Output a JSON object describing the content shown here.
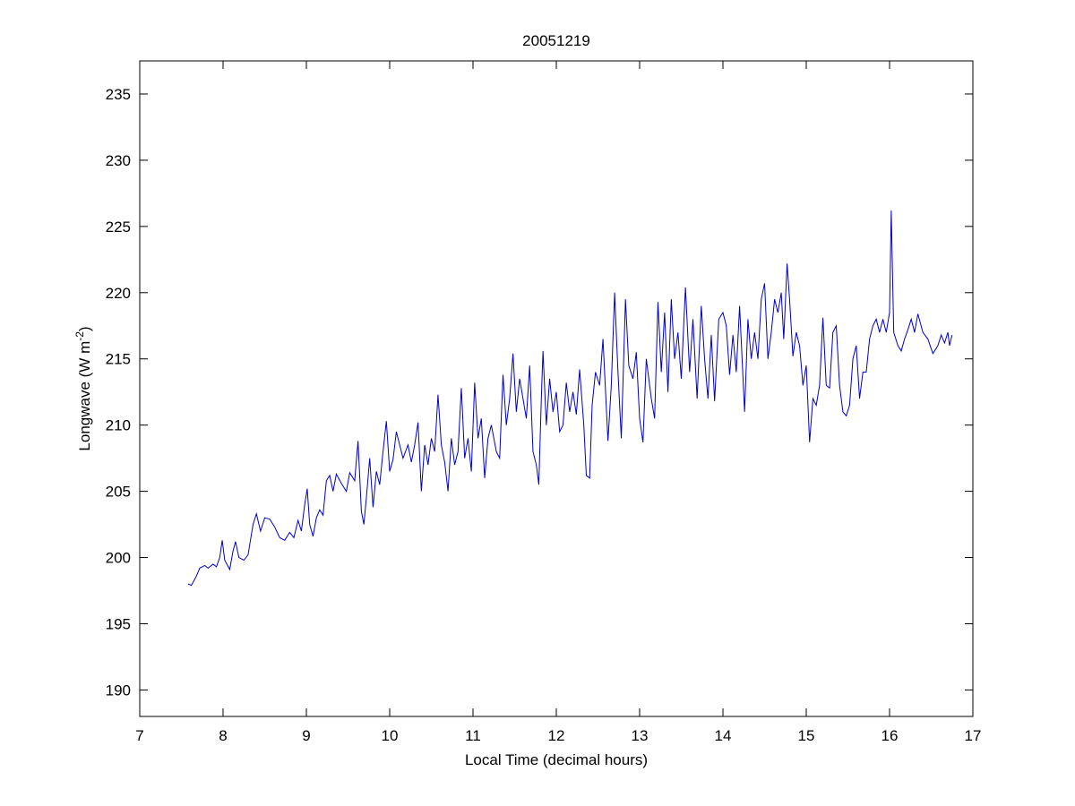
{
  "chart_data": {
    "type": "line",
    "title": "20051219",
    "xlabel": "Local Time (decimal hours)",
    "ylabel": [
      "Longwave (W m",
      "-2",
      ")"
    ],
    "xlim": [
      7,
      17
    ],
    "xticks": [
      7,
      8,
      9,
      10,
      11,
      12,
      13,
      14,
      15,
      16,
      17
    ],
    "ylim": [
      188,
      237.5
    ],
    "yticks": [
      190,
      195,
      200,
      205,
      210,
      215,
      220,
      225,
      230,
      235
    ],
    "grid": false,
    "series": [
      {
        "color": "#0000cc",
        "x": [
          7.58,
          7.62,
          7.68,
          7.72,
          7.78,
          7.82,
          7.88,
          7.92,
          7.96,
          7.99,
          8.02,
          8.08,
          8.12,
          8.15,
          8.19,
          8.25,
          8.3,
          8.36,
          8.4,
          8.45,
          8.5,
          8.56,
          8.62,
          8.68,
          8.74,
          8.8,
          8.85,
          8.9,
          8.94,
          8.98,
          9.01,
          9.04,
          9.08,
          9.12,
          9.16,
          9.2,
          9.24,
          9.28,
          9.32,
          9.36,
          9.42,
          9.48,
          9.52,
          9.58,
          9.62,
          9.66,
          9.69,
          9.72,
          9.76,
          9.8,
          9.84,
          9.88,
          9.92,
          9.96,
          10.0,
          10.04,
          10.08,
          10.12,
          10.16,
          10.22,
          10.26,
          10.3,
          10.34,
          10.38,
          10.42,
          10.46,
          10.5,
          10.54,
          10.58,
          10.62,
          10.66,
          10.7,
          10.74,
          10.78,
          10.82,
          10.86,
          10.9,
          10.94,
          10.98,
          11.02,
          11.06,
          11.1,
          11.14,
          11.18,
          11.22,
          11.28,
          11.32,
          11.36,
          11.4,
          11.44,
          11.48,
          11.52,
          11.56,
          11.6,
          11.64,
          11.68,
          11.72,
          11.76,
          11.79,
          11.82,
          11.84,
          11.88,
          11.92,
          11.96,
          12.0,
          12.04,
          12.08,
          12.12,
          12.16,
          12.2,
          12.24,
          12.28,
          12.33,
          12.36,
          12.4,
          12.43,
          12.47,
          12.52,
          12.56,
          12.62,
          12.66,
          12.7,
          12.74,
          12.78,
          12.83,
          12.87,
          12.92,
          12.96,
          13.0,
          13.04,
          13.08,
          13.14,
          13.18,
          13.22,
          13.26,
          13.3,
          13.34,
          13.38,
          13.42,
          13.46,
          13.5,
          13.55,
          13.6,
          13.64,
          13.69,
          13.74,
          13.78,
          13.82,
          13.86,
          13.9,
          13.95,
          14.0,
          14.04,
          14.08,
          14.12,
          14.16,
          14.2,
          14.26,
          14.3,
          14.34,
          14.38,
          14.42,
          14.46,
          14.5,
          14.54,
          14.58,
          14.62,
          14.66,
          14.7,
          14.73,
          14.77,
          14.8,
          14.84,
          14.88,
          14.92,
          14.96,
          15.0,
          15.04,
          15.08,
          15.12,
          15.16,
          15.2,
          15.24,
          15.28,
          15.32,
          15.36,
          15.4,
          15.44,
          15.48,
          15.52,
          15.56,
          15.6,
          15.64,
          15.68,
          15.72,
          15.76,
          15.8,
          15.84,
          15.88,
          15.92,
          15.96,
          16.0,
          16.02,
          16.05,
          16.1,
          16.14,
          16.18,
          16.22,
          16.26,
          16.3,
          16.34,
          16.4,
          16.46,
          16.52,
          16.58,
          16.62,
          16.66,
          16.7,
          16.72,
          16.75
        ],
        "values": [
          198.0,
          197.9,
          198.6,
          199.2,
          199.4,
          199.2,
          199.5,
          199.3,
          200.0,
          201.3,
          199.8,
          199.1,
          200.5,
          201.2,
          200.0,
          199.8,
          200.2,
          202.5,
          203.3,
          202.0,
          203.0,
          202.9,
          202.3,
          201.5,
          201.3,
          201.9,
          201.5,
          202.8,
          202.0,
          204.0,
          205.2,
          202.5,
          201.6,
          203.0,
          203.6,
          203.2,
          205.8,
          206.2,
          205.0,
          206.3,
          205.6,
          205.0,
          206.4,
          205.8,
          208.8,
          203.5,
          202.5,
          204.5,
          207.5,
          203.8,
          206.5,
          205.5,
          208.0,
          210.3,
          206.5,
          207.4,
          209.5,
          208.5,
          207.5,
          208.5,
          207.2,
          208.5,
          210.2,
          205.0,
          208.5,
          207.0,
          209.0,
          208.0,
          212.3,
          208.5,
          207.2,
          205.0,
          209.0,
          207.0,
          208.0,
          212.8,
          207.5,
          209.0,
          206.5,
          213.2,
          209.0,
          210.5,
          206.0,
          209.0,
          210.0,
          208.0,
          207.5,
          213.8,
          210.0,
          212.0,
          215.4,
          211.0,
          213.5,
          212.0,
          210.5,
          214.5,
          208.0,
          207.0,
          205.5,
          212.0,
          215.6,
          210.0,
          213.5,
          211.0,
          212.5,
          209.5,
          210.0,
          213.2,
          211.0,
          212.5,
          210.8,
          214.2,
          210.0,
          206.2,
          206.0,
          211.5,
          214.0,
          213.0,
          216.5,
          208.8,
          213.0,
          220.0,
          214.0,
          209.0,
          219.5,
          214.5,
          213.5,
          215.5,
          210.5,
          208.7,
          215.0,
          212.0,
          210.5,
          219.3,
          214.0,
          218.5,
          212.5,
          219.5,
          215.0,
          217.0,
          213.5,
          220.4,
          214.0,
          218.0,
          212.0,
          219.0,
          215.0,
          212.0,
          216.8,
          211.8,
          218.0,
          218.5,
          217.5,
          213.8,
          216.8,
          214.0,
          219.0,
          211.0,
          218.0,
          215.0,
          217.0,
          215.0,
          219.5,
          220.7,
          215.0,
          217.0,
          219.5,
          218.5,
          220.0,
          216.5,
          222.2,
          219.5,
          215.2,
          217.0,
          216.0,
          213.0,
          214.5,
          208.7,
          212.0,
          211.5,
          213.0,
          218.1,
          213.0,
          212.8,
          217.0,
          217.5,
          213.0,
          211.0,
          210.7,
          211.5,
          215.0,
          216.0,
          212.0,
          214.0,
          214.0,
          216.5,
          217.5,
          218.0,
          217.0,
          218.0,
          217.0,
          218.5,
          226.2,
          217.0,
          216.0,
          215.6,
          216.5,
          217.2,
          218.0,
          217.0,
          218.4,
          217.0,
          216.5,
          215.4,
          216.0,
          216.8,
          216.2,
          217.0,
          216.0,
          216.8
        ]
      }
    ]
  }
}
